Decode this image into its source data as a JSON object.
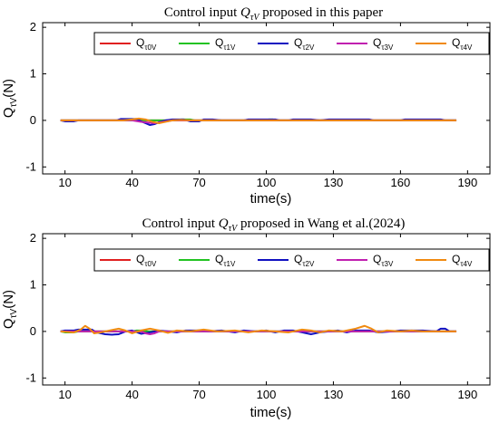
{
  "chart_data": [
    {
      "type": "line",
      "title": {
        "prefix": "Control input ",
        "symbol": "Q",
        "symbol_sub": "τV",
        "suffix": " proposed in this paper"
      },
      "xlabel": "time(s)",
      "ylabel": {
        "main": "Q",
        "sub": "τV",
        "unit": "(N)"
      },
      "xlim": [
        0,
        200
      ],
      "ylim": [
        -1.15,
        2.1
      ],
      "xticks": [
        10,
        40,
        70,
        100,
        130,
        160,
        190
      ],
      "yticks": [
        -1,
        0,
        1,
        2
      ],
      "legend": "top-right",
      "series": [
        {
          "name": "Q",
          "sub": "τ0V",
          "color": "#e02020",
          "points": [
            [
              8,
              0
            ],
            [
              185,
              0
            ]
          ]
        },
        {
          "name": "Q",
          "sub": "τ1V",
          "color": "#22c322",
          "points": [
            [
              8,
              0
            ],
            [
              60,
              0
            ],
            [
              62,
              0.02
            ],
            [
              66,
              0.02
            ],
            [
              68,
              0
            ],
            [
              100,
              0
            ],
            [
              101,
              0.02
            ],
            [
              103,
              0.02
            ],
            [
              104,
              0
            ],
            [
              185,
              0
            ]
          ]
        },
        {
          "name": "Q",
          "sub": "τ2V",
          "color": "#1010c0",
          "points": [
            [
              8,
              0
            ],
            [
              10,
              -0.02
            ],
            [
              14,
              -0.02
            ],
            [
              16,
              0
            ],
            [
              33,
              0
            ],
            [
              35,
              0.03
            ],
            [
              42,
              0.03
            ],
            [
              44,
              -0.02
            ],
            [
              46,
              -0.06
            ],
            [
              48,
              -0.1
            ],
            [
              50,
              -0.08
            ],
            [
              52,
              -0.04
            ],
            [
              55,
              0
            ],
            [
              58,
              0.02
            ],
            [
              63,
              0.02
            ],
            [
              66,
              -0.02
            ],
            [
              70,
              -0.02
            ],
            [
              72,
              0.02
            ],
            [
              76,
              0.02
            ],
            [
              80,
              0
            ],
            [
              90,
              0
            ],
            [
              92,
              0.02
            ],
            [
              100,
              0.02
            ],
            [
              104,
              0.02
            ],
            [
              106,
              0
            ],
            [
              110,
              0
            ],
            [
              112,
              0.02
            ],
            [
              120,
              0.02
            ],
            [
              124,
              0
            ],
            [
              128,
              0.02
            ],
            [
              146,
              0.02
            ],
            [
              148,
              0
            ],
            [
              160,
              0
            ],
            [
              162,
              0.02
            ],
            [
              178,
              0.02
            ],
            [
              180,
              0
            ],
            [
              185,
              0
            ]
          ]
        },
        {
          "name": "Q",
          "sub": "τ3V",
          "color": "#c020b0",
          "points": [
            [
              8,
              0
            ],
            [
              40,
              0
            ],
            [
              44,
              -0.03
            ],
            [
              50,
              -0.06
            ],
            [
              54,
              -0.03
            ],
            [
              58,
              0
            ],
            [
              185,
              0
            ]
          ]
        },
        {
          "name": "Q",
          "sub": "τ4V",
          "color": "#f08a10",
          "points": [
            [
              8,
              0
            ],
            [
              36,
              0
            ],
            [
              40,
              0.02
            ],
            [
              43,
              0.04
            ],
            [
              46,
              0.02
            ],
            [
              49,
              -0.03
            ],
            [
              52,
              -0.06
            ],
            [
              55,
              -0.03
            ],
            [
              58,
              0
            ],
            [
              62,
              0.01
            ],
            [
              66,
              0
            ],
            [
              185,
              0
            ]
          ]
        }
      ]
    },
    {
      "type": "line",
      "title": {
        "prefix": "Control input ",
        "symbol": "Q",
        "symbol_sub": "τV",
        "suffix": " proposed in Wang et al.(2024)"
      },
      "xlabel": "time(s)",
      "ylabel": {
        "main": "Q",
        "sub": "τV",
        "unit": "(N)"
      },
      "xlim": [
        0,
        200
      ],
      "ylim": [
        -1.15,
        2.1
      ],
      "xticks": [
        10,
        40,
        70,
        100,
        130,
        160,
        190
      ],
      "yticks": [
        -1,
        0,
        1,
        2
      ],
      "legend": "top",
      "series": [
        {
          "name": "Q",
          "sub": "τ0V",
          "color": "#e02020",
          "points": [
            [
              8,
              0
            ],
            [
              185,
              0
            ]
          ]
        },
        {
          "name": "Q",
          "sub": "τ1V",
          "color": "#22c322",
          "points": [
            [
              8,
              0
            ],
            [
              10,
              -0.02
            ],
            [
              14,
              -0.02
            ],
            [
              16,
              0
            ],
            [
              40,
              0
            ],
            [
              42,
              0.02
            ],
            [
              45,
              0.02
            ],
            [
              47,
              0
            ],
            [
              185,
              0
            ]
          ]
        },
        {
          "name": "Q",
          "sub": "τ2V",
          "color": "#1010c0",
          "points": [
            [
              8,
              0
            ],
            [
              10,
              0.02
            ],
            [
              14,
              0.02
            ],
            [
              16,
              0.04
            ],
            [
              22,
              0.04
            ],
            [
              24,
              -0.02
            ],
            [
              28,
              -0.06
            ],
            [
              31,
              -0.07
            ],
            [
              34,
              -0.06
            ],
            [
              37,
              0
            ],
            [
              40,
              0.02
            ],
            [
              44,
              -0.05
            ],
            [
              48,
              -0.02
            ],
            [
              52,
              0.02
            ],
            [
              56,
              0
            ],
            [
              60,
              -0.02
            ],
            [
              64,
              0.02
            ],
            [
              70,
              0.02
            ],
            [
              74,
              0
            ],
            [
              80,
              0.02
            ],
            [
              86,
              -0.02
            ],
            [
              90,
              0.02
            ],
            [
              95,
              0
            ],
            [
              100,
              0.02
            ],
            [
              104,
              -0.02
            ],
            [
              108,
              0.02
            ],
            [
              112,
              0.02
            ],
            [
              116,
              -0.02
            ],
            [
              120,
              -0.06
            ],
            [
              124,
              -0.02
            ],
            [
              128,
              0
            ],
            [
              132,
              0.02
            ],
            [
              136,
              -0.02
            ],
            [
              140,
              0.02
            ],
            [
              146,
              0.02
            ],
            [
              150,
              -0.02
            ],
            [
              156,
              0
            ],
            [
              160,
              0.02
            ],
            [
              170,
              0.02
            ],
            [
              176,
              0
            ],
            [
              178,
              0.06
            ],
            [
              180,
              0.06
            ],
            [
              182,
              0
            ],
            [
              185,
              0
            ]
          ]
        },
        {
          "name": "Q",
          "sub": "τ3V",
          "color": "#c020b0",
          "points": [
            [
              8,
              0
            ],
            [
              44,
              0
            ],
            [
              46,
              -0.04
            ],
            [
              48,
              -0.06
            ],
            [
              50,
              -0.04
            ],
            [
              52,
              0
            ],
            [
              185,
              0
            ]
          ]
        },
        {
          "name": "Q",
          "sub": "τ4V",
          "color": "#f08a10",
          "points": [
            [
              8,
              0
            ],
            [
              14,
              -0.02
            ],
            [
              17,
              0.04
            ],
            [
              19,
              0.12
            ],
            [
              21,
              0.06
            ],
            [
              23,
              -0.04
            ],
            [
              26,
              -0.02
            ],
            [
              30,
              0.02
            ],
            [
              34,
              0.06
            ],
            [
              37,
              0.02
            ],
            [
              40,
              -0.04
            ],
            [
              44,
              0.02
            ],
            [
              48,
              0.06
            ],
            [
              52,
              0.02
            ],
            [
              56,
              -0.03
            ],
            [
              60,
              0.02
            ],
            [
              66,
              0
            ],
            [
              72,
              0.04
            ],
            [
              78,
              0
            ],
            [
              86,
              0.02
            ],
            [
              92,
              -0.02
            ],
            [
              98,
              0.02
            ],
            [
              104,
              0
            ],
            [
              110,
              -0.02
            ],
            [
              116,
              0.04
            ],
            [
              120,
              0.02
            ],
            [
              124,
              -0.02
            ],
            [
              128,
              0.02
            ],
            [
              134,
              0
            ],
            [
              140,
              0.06
            ],
            [
              144,
              0.12
            ],
            [
              147,
              0.06
            ],
            [
              150,
              -0.02
            ],
            [
              154,
              0.02
            ],
            [
              160,
              0
            ],
            [
              165,
              0.02
            ],
            [
              170,
              0
            ],
            [
              185,
              0
            ]
          ]
        }
      ]
    }
  ]
}
